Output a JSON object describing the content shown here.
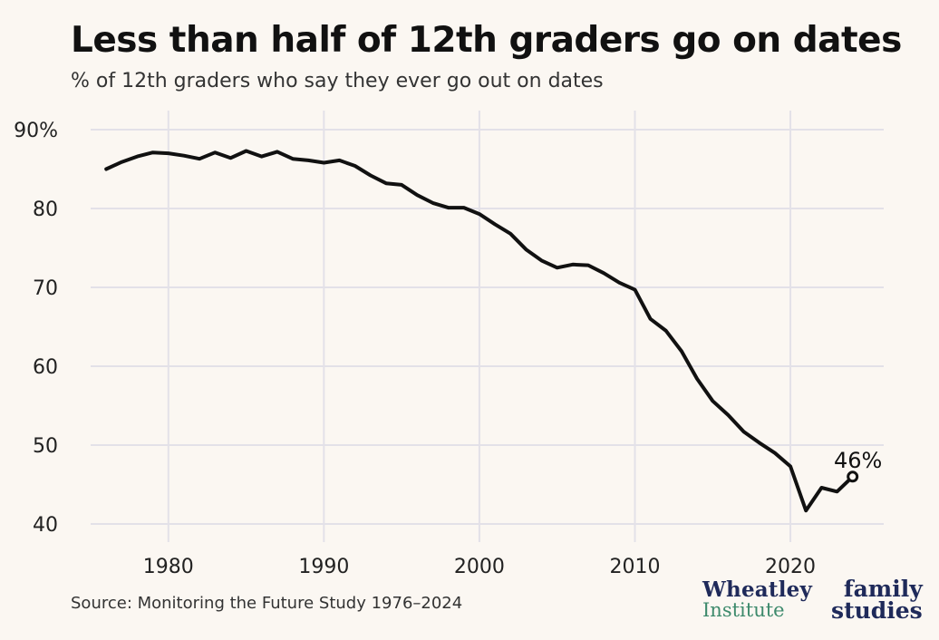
{
  "header": {
    "title": "Less than half of 12th graders go on dates",
    "subtitle": "% of 12th graders who say they ever go out on dates"
  },
  "footer": {
    "source": "Source: Monitoring the Future Study 1976–2024",
    "logo_wheatley_line1": "Wheatley",
    "logo_wheatley_line2": "Institute",
    "logo_ifs_line1": "family",
    "logo_ifs_line2": "studies"
  },
  "colors": {
    "background": "#fbf7f2",
    "line": "#111111",
    "grid": "#e3e1e8",
    "wheatley_navy": "#1f2a5a",
    "wheatley_green": "#3d8a6c"
  },
  "chart_data": {
    "type": "line",
    "title": "Less than half of 12th graders go on dates",
    "subtitle": "% of 12th graders who say they ever go out on dates",
    "xlabel": "",
    "ylabel": "",
    "xlim": [
      1975,
      2026
    ],
    "ylim": [
      40,
      90
    ],
    "x_ticks": [
      1980,
      1990,
      2000,
      2010,
      2020
    ],
    "y_ticks": [
      40,
      50,
      60,
      70,
      80,
      90
    ],
    "y_tick_labels": [
      "40",
      "50",
      "60",
      "70",
      "80",
      "90%"
    ],
    "grid": true,
    "end_annotation": "46%",
    "x": [
      1976,
      1977,
      1978,
      1979,
      1980,
      1981,
      1982,
      1983,
      1984,
      1985,
      1986,
      1987,
      1988,
      1989,
      1990,
      1991,
      1992,
      1993,
      1994,
      1995,
      1996,
      1997,
      1998,
      1999,
      2000,
      2001,
      2002,
      2003,
      2004,
      2005,
      2006,
      2007,
      2008,
      2009,
      2010,
      2011,
      2012,
      2013,
      2014,
      2015,
      2016,
      2017,
      2018,
      2019,
      2020,
      2021,
      2022,
      2023,
      2024
    ],
    "series": [
      {
        "values": [
          85,
          85.9,
          86.6,
          87.1,
          87.0,
          86.7,
          86.3,
          87.1,
          86.4,
          87.3,
          86.6,
          87.2,
          86.3,
          86.1,
          85.8,
          86.1,
          85.4,
          84.2,
          83.2,
          83.0,
          81.7,
          80.7,
          80.1,
          80.1,
          79.3,
          78.0,
          76.8,
          74.8,
          73.4,
          72.5,
          72.9,
          72.8,
          71.8,
          70.6,
          69.7,
          66.0,
          64.5,
          61.9,
          58.4,
          55.6,
          53.8,
          51.7,
          50.3,
          49.0,
          47.3,
          41.7,
          44.6,
          44.1,
          46.0
        ]
      }
    ]
  }
}
